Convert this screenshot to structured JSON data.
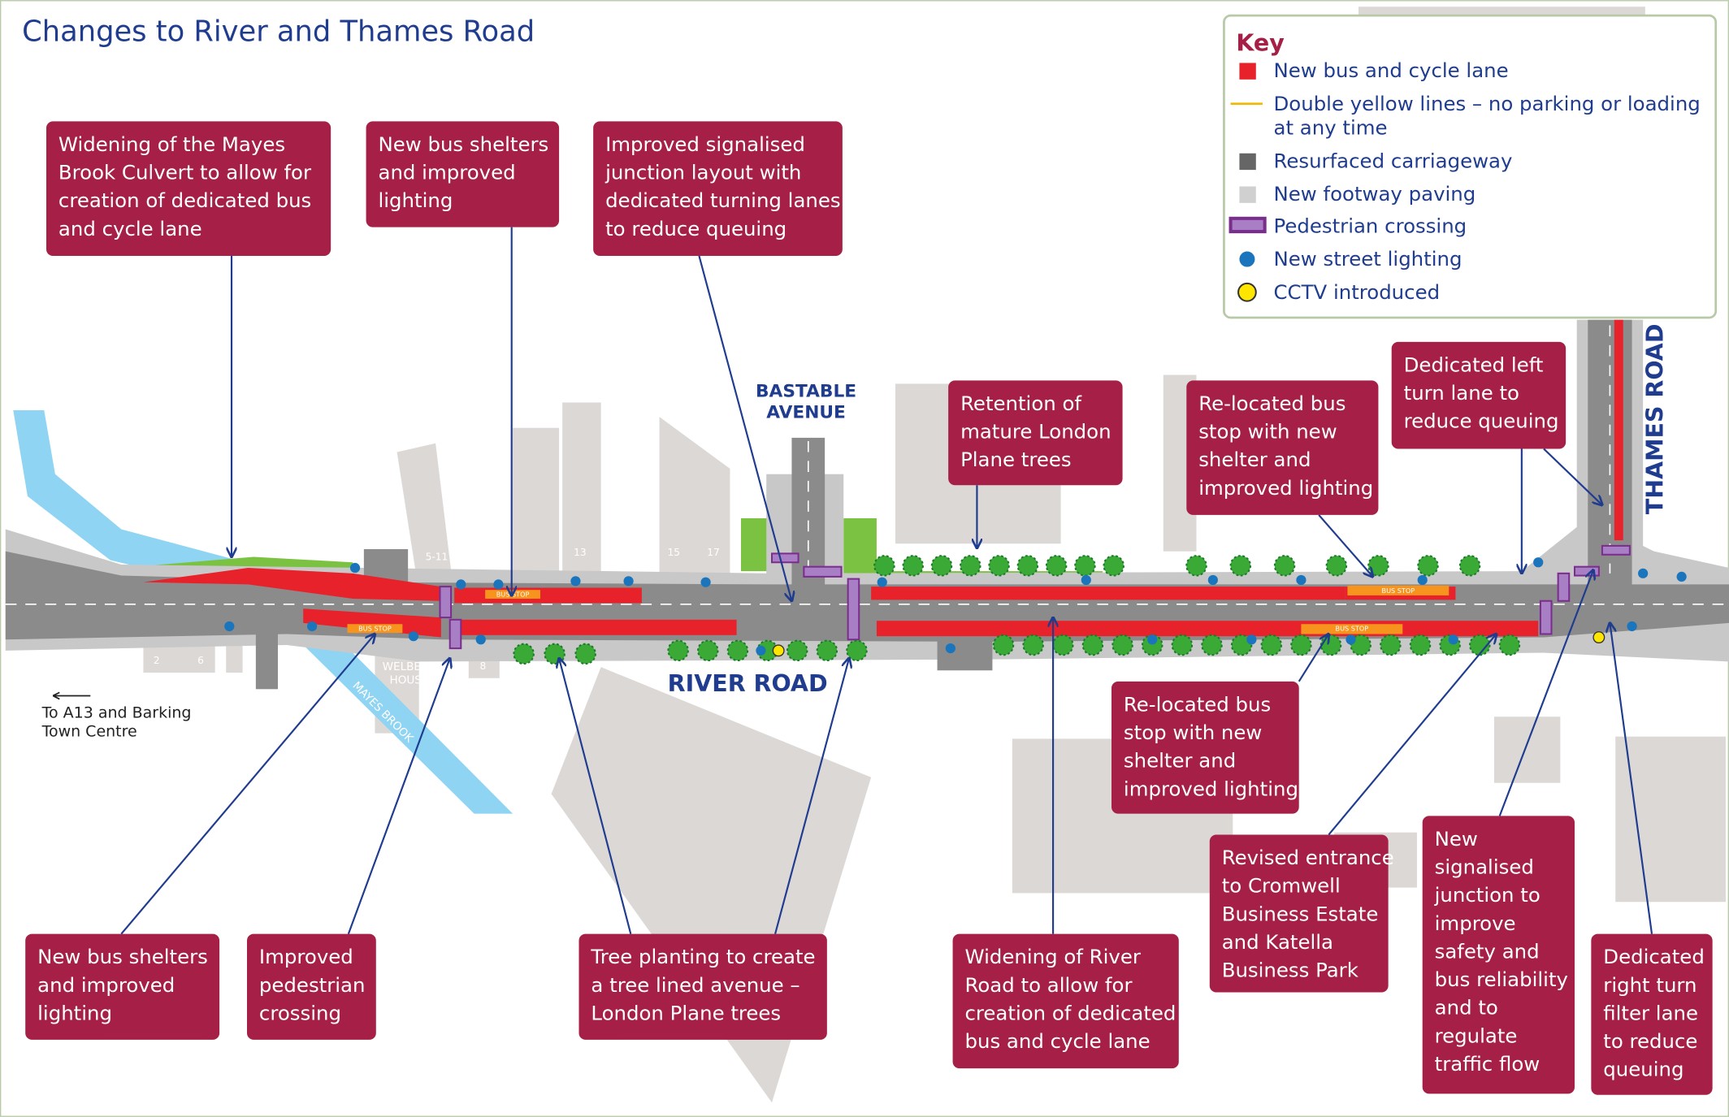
{
  "title": "Changes to River and Thames Road",
  "key": {
    "title": "Key",
    "items": [
      {
        "lines": [
          "New bus and cycle lane"
        ]
      },
      {
        "lines": [
          "Double yellow lines – no parking or loading",
          "at any time"
        ]
      },
      {
        "lines": [
          "Resurfaced carriageway"
        ]
      },
      {
        "lines": [
          "New footway paving"
        ]
      },
      {
        "lines": [
          "Pedestrian crossing"
        ]
      },
      {
        "lines": [
          "New street lighting"
        ]
      },
      {
        "lines": [
          "CCTV introduced"
        ]
      }
    ]
  },
  "callouts": [
    {
      "lines": [
        "Widening of the Mayes",
        "Brook Culvert to allow for",
        "creation of dedicated bus",
        "and cycle lane"
      ]
    },
    {
      "lines": [
        "New bus shelters",
        "and improved",
        "lighting"
      ]
    },
    {
      "lines": [
        "Improved signalised",
        "junction layout with",
        "dedicated turning lanes",
        "to reduce queuing"
      ]
    },
    {
      "lines": [
        "Retention of",
        "mature London",
        "Plane trees"
      ]
    },
    {
      "lines": [
        "Re-located bus",
        "stop with new",
        "shelter and",
        "improved lighting"
      ]
    },
    {
      "lines": [
        "Dedicated left",
        "turn lane to",
        "reduce queuing"
      ]
    },
    {
      "lines": [
        "Re-located bus",
        "stop with new",
        "shelter and",
        "improved lighting"
      ]
    },
    {
      "lines": [
        "Revised entrance",
        "to Cromwell",
        "Business Estate",
        "and Katella",
        "Business Park"
      ]
    },
    {
      "lines": [
        "New",
        "signalised",
        "junction to",
        "improve",
        "safety and",
        "bus reliability",
        "and to",
        "regulate",
        "traffic flow"
      ]
    },
    {
      "lines": [
        "Dedicated",
        "right turn",
        "filter lane",
        "to reduce",
        "queuing"
      ]
    },
    {
      "lines": [
        "Widening of River",
        "Road to allow for",
        "creation of dedicated",
        "bus and cycle lane"
      ]
    },
    {
      "lines": [
        "Tree planting to create",
        "a tree lined avenue –",
        "London Plane trees"
      ]
    },
    {
      "lines": [
        "Improved",
        "pedestrian",
        "crossing"
      ]
    },
    {
      "lines": [
        "New bus shelters",
        "and improved",
        "lighting"
      ]
    }
  ],
  "roads": {
    "bastable": [
      "BASTABLE",
      "AVENUE"
    ],
    "river": "RIVER ROAD",
    "thames": "THAMES ROAD",
    "mayes_brook": "MAYES BROOK"
  },
  "places": {
    "welbeck": [
      "WELBECK",
      "HOUSE"
    ],
    "direction": [
      "To A13 and Barking",
      "Town Centre"
    ],
    "bus_stop": "BUS STOP",
    "building_numbers": [
      "5-11",
      "13",
      "15",
      "17",
      "2",
      "6",
      "8"
    ]
  }
}
